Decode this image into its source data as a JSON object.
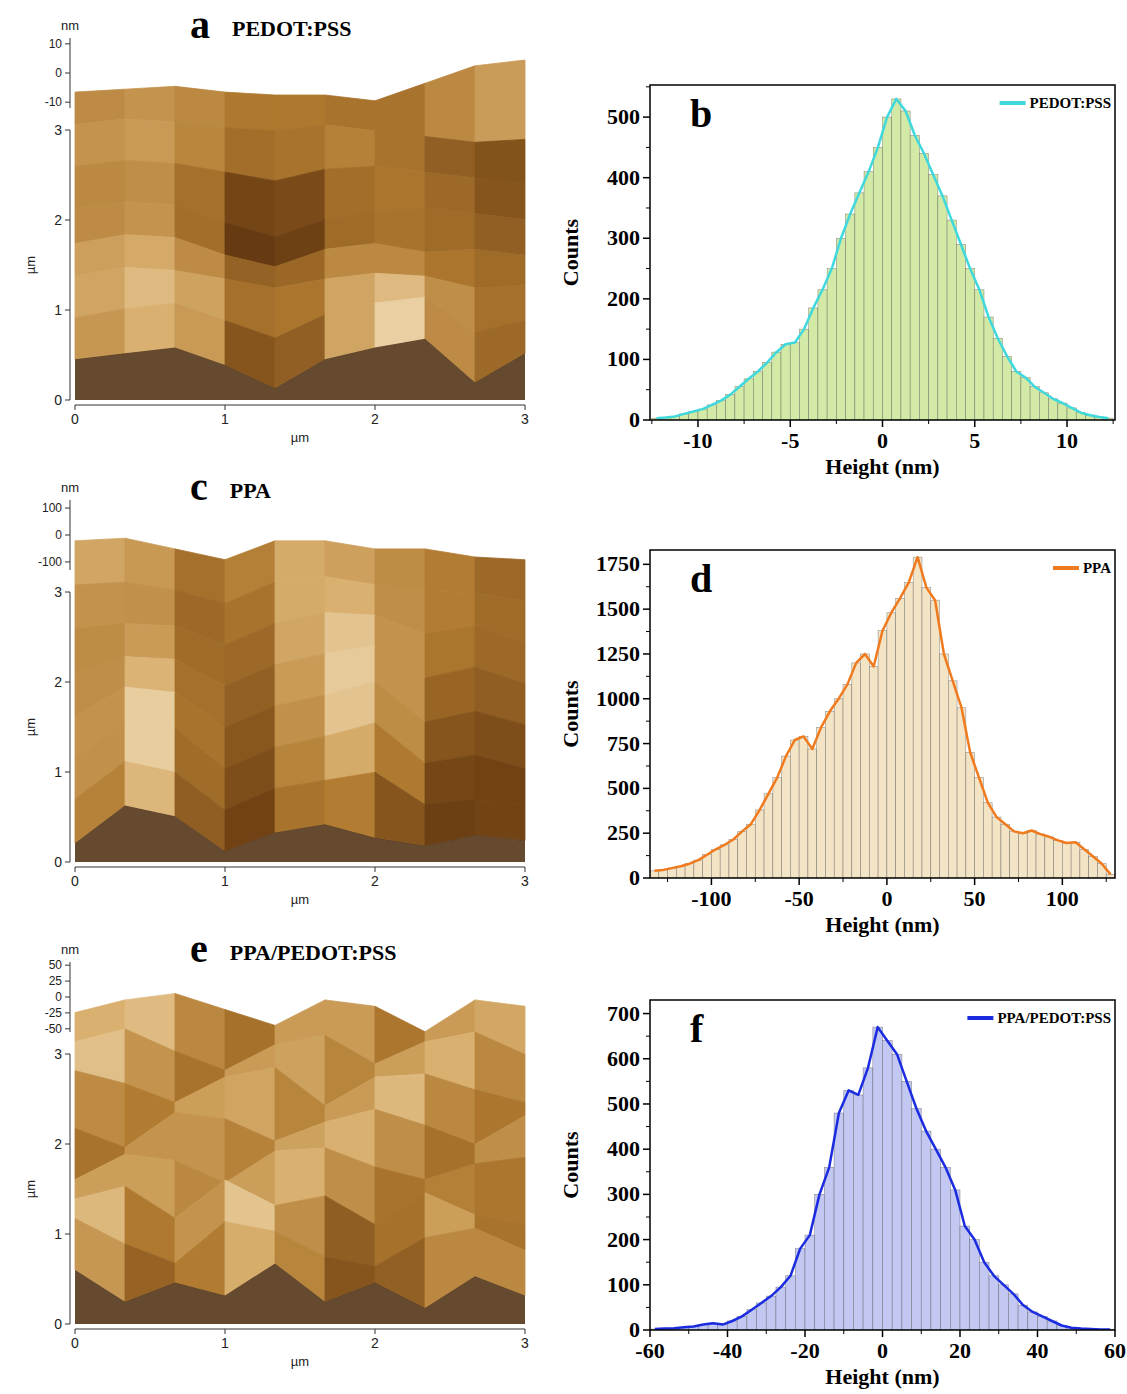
{
  "chart_data": [
    {
      "type": "surface",
      "label": "a",
      "title": "PEDOT:PSS",
      "xlabel": "µm",
      "ylabel": "µm",
      "zlabel": "nm",
      "xlim": [
        0,
        3
      ],
      "xticks": [
        0,
        1,
        2,
        3
      ],
      "ylim": [
        0,
        3
      ],
      "yticks": [
        0,
        1,
        2,
        3
      ],
      "zlim": [
        -12,
        12
      ],
      "zticks": [
        -10,
        0,
        10
      ],
      "heights": [
        [
          2,
          4,
          6,
          0,
          -8,
          2,
          6,
          9,
          -6,
          4
        ],
        [
          3,
          6,
          8,
          2,
          -4,
          4,
          8,
          10,
          -2,
          2
        ],
        [
          4,
          7,
          6,
          3,
          0,
          3,
          5,
          4,
          0,
          1
        ],
        [
          2,
          5,
          4,
          -2,
          -6,
          0,
          2,
          -1,
          0,
          -2
        ],
        [
          1,
          3,
          2,
          -4,
          -9,
          -3,
          0,
          1,
          -1,
          -3
        ],
        [
          2,
          4,
          3,
          0,
          -3,
          1,
          2,
          0,
          -2,
          -4
        ],
        [
          3,
          5,
          4,
          2,
          1,
          3,
          1,
          -1,
          -3,
          -2
        ],
        [
          1,
          2,
          3,
          1,
          0,
          0,
          -2,
          4,
          10,
          12
        ]
      ]
    },
    {
      "type": "histogram",
      "label": "b",
      "xlabel": "Height (nm)",
      "ylabel": "Counts",
      "xlim": [
        -12.6,
        12.6
      ],
      "xticks": [
        -10,
        -5,
        0,
        5,
        10
      ],
      "ylim": [
        0,
        553
      ],
      "yticks": [
        0,
        100,
        200,
        300,
        400,
        500
      ],
      "legend": "upper right",
      "color": "#d3eaa6",
      "bins": [
        -12.5,
        -12,
        -11.5,
        -11,
        -10.5,
        -10,
        -9.5,
        -9,
        -8.5,
        -8,
        -7.5,
        -7,
        -6.5,
        -6,
        -5.5,
        -5,
        -4.5,
        -4,
        -3.5,
        -3,
        -2.5,
        -2,
        -1.5,
        -1,
        -0.5,
        0,
        0.5,
        1,
        1.5,
        2,
        2.5,
        3,
        3.5,
        4,
        4.5,
        5,
        5.5,
        6,
        6.5,
        7,
        7.5,
        8,
        8.5,
        9,
        9.5,
        10,
        10.5,
        11,
        11.5,
        12,
        12.5
      ],
      "series": [
        {
          "name": "PEDOT:PSS",
          "color": "#3fd8dc",
          "values": [
            3,
            4,
            6,
            10,
            14,
            18,
            25,
            32,
            42,
            55,
            68,
            80,
            95,
            112,
            125,
            128,
            150,
            185,
            215,
            250,
            300,
            340,
            375,
            410,
            450,
            500,
            530,
            510,
            470,
            440,
            405,
            370,
            330,
            290,
            250,
            215,
            170,
            135,
            105,
            80,
            70,
            55,
            45,
            35,
            28,
            20,
            12,
            8,
            5,
            3
          ]
        }
      ]
    },
    {
      "type": "surface",
      "label": "c",
      "title": "PPA",
      "xlabel": "µm",
      "ylabel": "µm",
      "zlabel": "nm",
      "xlim": [
        0,
        3
      ],
      "xticks": [
        0,
        1,
        2,
        3
      ],
      "ylim": [
        0,
        3
      ],
      "yticks": [
        0,
        1,
        2,
        3
      ],
      "zlim": [
        -130,
        130
      ],
      "zticks": [
        -100,
        0,
        100
      ],
      "heights": [
        [
          -60,
          80,
          40,
          -90,
          -20,
          10,
          -40,
          -70,
          -30,
          -50
        ],
        [
          -40,
          100,
          60,
          -80,
          0,
          30,
          60,
          -60,
          -40,
          -60
        ],
        [
          -30,
          110,
          80,
          -70,
          10,
          50,
          100,
          -50,
          -20,
          -70
        ],
        [
          -20,
          90,
          70,
          -60,
          20,
          60,
          110,
          -40,
          0,
          -50
        ],
        [
          0,
          60,
          50,
          -50,
          30,
          70,
          100,
          -20,
          20,
          -40
        ],
        [
          20,
          40,
          30,
          -40,
          40,
          80,
          70,
          0,
          30,
          -30
        ],
        [
          40,
          50,
          20,
          -30,
          50,
          70,
          40,
          20,
          10,
          -20
        ],
        [
          60,
          70,
          30,
          -10,
          60,
          60,
          30,
          30,
          0,
          -10
        ]
      ]
    },
    {
      "type": "histogram",
      "label": "d",
      "xlabel": "Height (nm)",
      "ylabel": "Counts",
      "xlim": [
        -135,
        130
      ],
      "xticks": [
        -100,
        -50,
        0,
        50,
        100
      ],
      "ylim": [
        0,
        1830
      ],
      "yticks": [
        0,
        250,
        500,
        750,
        1000,
        1250,
        1500,
        1750
      ],
      "legend": "upper right",
      "color": "#f4e4c6",
      "bins": [
        -135,
        -130,
        -125,
        -120,
        -115,
        -110,
        -105,
        -100,
        -95,
        -90,
        -85,
        -80,
        -75,
        -70,
        -65,
        -60,
        -55,
        -50,
        -45,
        -40,
        -35,
        -30,
        -25,
        -20,
        -15,
        -10,
        -5,
        0,
        5,
        10,
        15,
        20,
        25,
        30,
        35,
        40,
        45,
        50,
        55,
        60,
        65,
        70,
        75,
        80,
        85,
        90,
        95,
        100,
        105,
        110,
        115,
        120,
        125,
        130
      ],
      "series": [
        {
          "name": "PPA",
          "color": "#f07a1e",
          "values": [
            40,
            45,
            55,
            65,
            80,
            100,
            130,
            160,
            185,
            215,
            260,
            300,
            380,
            470,
            560,
            680,
            770,
            790,
            720,
            840,
            930,
            1000,
            1080,
            1200,
            1250,
            1180,
            1380,
            1480,
            1560,
            1650,
            1790,
            1620,
            1550,
            1250,
            1100,
            950,
            700,
            560,
            420,
            340,
            300,
            260,
            250,
            265,
            245,
            230,
            210,
            195,
            200,
            160,
            120,
            80,
            20
          ]
        }
      ]
    },
    {
      "type": "surface",
      "label": "e",
      "title": "PPA/PEDOT:PSS",
      "xlabel": "µm",
      "ylabel": "µm",
      "zlabel": "nm",
      "xlim": [
        0,
        3
      ],
      "xticks": [
        0,
        1,
        2,
        3
      ],
      "ylim": [
        0,
        3
      ],
      "yticks": [
        0,
        1,
        2,
        3
      ],
      "zlim": [
        -55,
        55
      ],
      "zticks": [
        -50,
        -25,
        0,
        25,
        50
      ],
      "heights": [
        [
          30,
          -20,
          10,
          -10,
          40,
          -20,
          10,
          -30,
          20,
          -10
        ],
        [
          50,
          10,
          -20,
          45,
          30,
          -10,
          -25,
          20,
          35,
          0
        ],
        [
          20,
          40,
          -10,
          50,
          10,
          25,
          -20,
          30,
          -5,
          -20
        ],
        [
          -10,
          30,
          20,
          -15,
          35,
          40,
          10,
          -10,
          15,
          25
        ],
        [
          10,
          -20,
          35,
          25,
          -10,
          20,
          40,
          15,
          -15,
          30
        ],
        [
          40,
          20,
          -10,
          30,
          45,
          -15,
          30,
          35,
          10,
          -10
        ],
        [
          25,
          45,
          10,
          -20,
          20,
          35,
          -10,
          25,
          40,
          5
        ],
        [
          10,
          30,
          40,
          15,
          -10,
          30,
          20,
          -20,
          30,
          20
        ]
      ]
    },
    {
      "type": "histogram",
      "label": "f",
      "xlabel": "Height (nm)",
      "ylabel": "Counts",
      "xlim": [
        -60,
        60
      ],
      "xticks": [
        -60,
        -40,
        -20,
        0,
        20,
        40,
        60
      ],
      "ylim": [
        0,
        730
      ],
      "yticks": [
        0,
        100,
        200,
        300,
        400,
        500,
        600,
        700
      ],
      "legend": "upper right",
      "color": "#c3c8f2",
      "bins": [
        -60,
        -57.5,
        -55,
        -52.5,
        -50,
        -47.5,
        -45,
        -42.5,
        -40,
        -37.5,
        -35,
        -32.5,
        -30,
        -27.5,
        -25,
        -22.5,
        -20,
        -17.5,
        -15,
        -12.5,
        -10,
        -7.5,
        -5,
        -2.5,
        0,
        2.5,
        5,
        7.5,
        10,
        12.5,
        15,
        17.5,
        20,
        22.5,
        25,
        27.5,
        30,
        32.5,
        35,
        37.5,
        40,
        42.5,
        45,
        47.5,
        50,
        52.5,
        55,
        57.5,
        60
      ],
      "series": [
        {
          "name": "PPA/PEDOT:PSS",
          "color": "#1a2be0",
          "values": [
            2,
            3,
            4,
            6,
            8,
            12,
            15,
            12,
            20,
            30,
            45,
            60,
            75,
            95,
            120,
            180,
            210,
            300,
            360,
            480,
            530,
            520,
            580,
            670,
            640,
            610,
            550,
            490,
            440,
            400,
            360,
            310,
            230,
            200,
            150,
            120,
            100,
            80,
            55,
            40,
            30,
            20,
            10,
            5,
            3,
            2,
            1,
            1
          ]
        }
      ]
    }
  ]
}
